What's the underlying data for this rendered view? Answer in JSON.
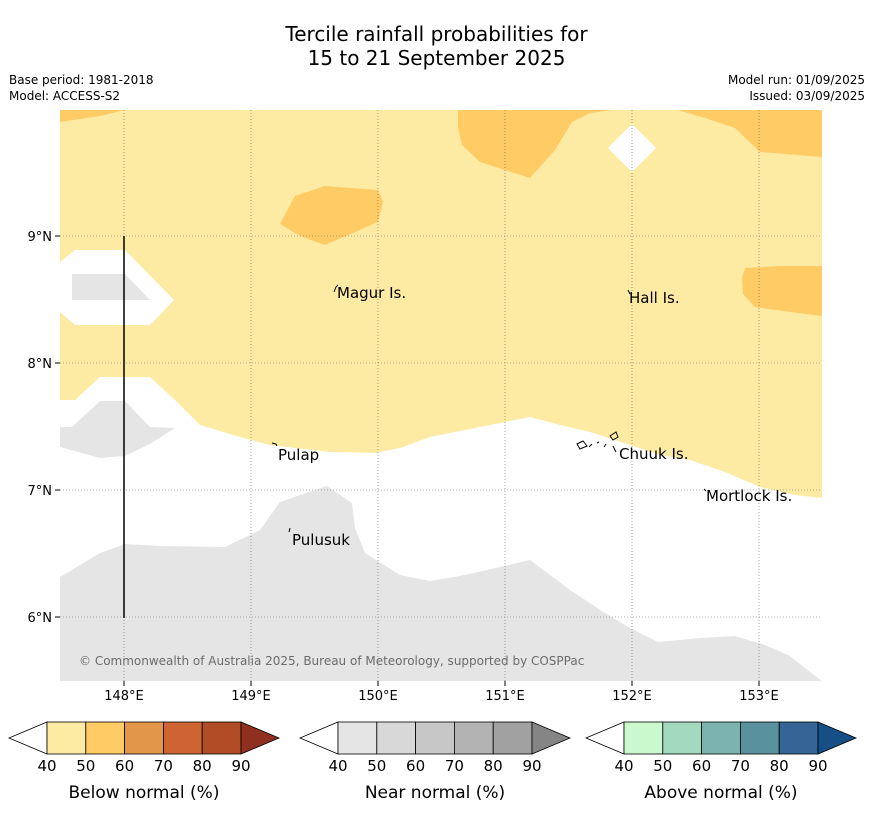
{
  "title": {
    "line1": "Tercile rainfall probabilities for",
    "line2": "15 to 21 September 2025"
  },
  "info": {
    "base_period": "Base period: 1981-2018",
    "model": "Model: ACCESS-S2",
    "model_run": "Model run: 01/09/2025",
    "issued": "Issued: 03/09/2025"
  },
  "map": {
    "lon_ticks": [
      "148°E",
      "149°E",
      "150°E",
      "151°E",
      "152°E",
      "153°E"
    ],
    "lat_ticks": [
      "9°N",
      "8°N",
      "7°N",
      "6°N"
    ],
    "places": [
      "Magur Is.",
      "Hall Is.",
      "Pulap",
      "Chuuk Is.",
      "Mortlock Is.",
      "Pulusuk"
    ],
    "credit": "© Commonwealth of Australia 2025, Bureau of Meteorology, supported by COSPPac",
    "colors": {
      "below_40_50": "#fdeba4",
      "below_50_60": "#fecb65",
      "near_40_50": "#e5e5e5",
      "background": "#ffffff"
    }
  },
  "legends": {
    "below": {
      "label": "Below normal (%)",
      "ticks": [
        "40",
        "50",
        "60",
        "70",
        "80",
        "90"
      ],
      "colors": [
        "#fdeba4",
        "#fecb65",
        "#e1964a",
        "#cd6431",
        "#b14c27",
        "#8f2f1f"
      ]
    },
    "near": {
      "label": "Near normal (%)",
      "ticks": [
        "40",
        "50",
        "60",
        "70",
        "80",
        "90"
      ],
      "colors": [
        "#e5e5e5",
        "#d8d8d8",
        "#c7c7c7",
        "#b3b3b3",
        "#a1a1a1",
        "#858585"
      ]
    },
    "above": {
      "label": "Above normal (%)",
      "ticks": [
        "40",
        "50",
        "60",
        "70",
        "80",
        "90"
      ],
      "colors": [
        "#c9f9cc",
        "#a2d9bf",
        "#7bb4ae",
        "#5a919e",
        "#346596",
        "#164f86"
      ]
    }
  }
}
